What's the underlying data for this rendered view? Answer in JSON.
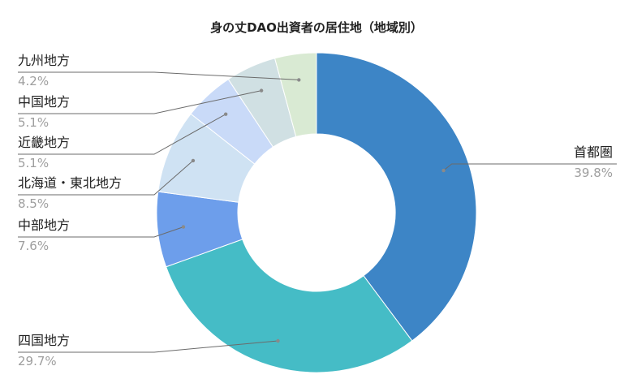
{
  "chart_data": {
    "type": "pie",
    "title": "身の丈DAO出資者の居住地（地域別）",
    "donut": true,
    "slices": [
      {
        "label": "首都圏",
        "value": 39.8,
        "display": "39.8%",
        "color": "#3d85c6"
      },
      {
        "label": "四国地方",
        "value": 29.7,
        "display": "29.7%",
        "color": "#45bcc6"
      },
      {
        "label": "中部地方",
        "value": 7.6,
        "display": "7.6%",
        "color": "#6d9eeb"
      },
      {
        "label": "北海道・東北地方",
        "value": 8.5,
        "display": "8.5%",
        "color": "#cfe2f3"
      },
      {
        "label": "近畿地方",
        "value": 5.1,
        "display": "5.1%",
        "color": "#c9daf8"
      },
      {
        "label": "中国地方",
        "value": 5.1,
        "display": "5.1%",
        "color": "#d0e0e3"
      },
      {
        "label": "九州地方",
        "value": 4.2,
        "display": "4.2%",
        "color": "#d9ead3"
      }
    ]
  }
}
